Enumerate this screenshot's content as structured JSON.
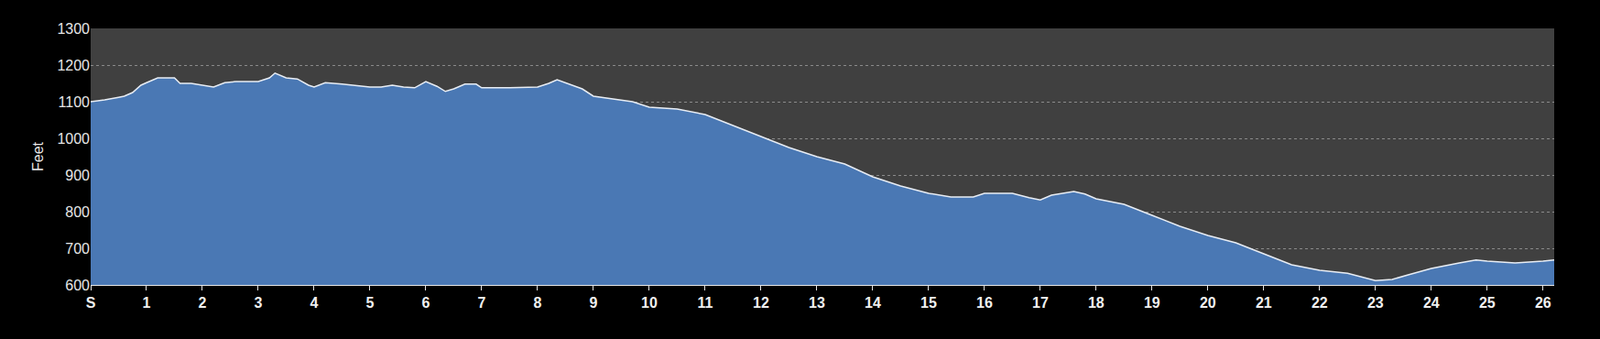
{
  "chart_data": {
    "type": "area",
    "y_label": "Feet",
    "color": "#4a78b4",
    "grid": true,
    "x": [
      0,
      0.25,
      0.5,
      0.6,
      0.75,
      0.9,
      1,
      1.2,
      1.5,
      1.6,
      1.8,
      2,
      2.2,
      2.4,
      2.6,
      3,
      3.2,
      3.3,
      3.5,
      3.7,
      3.9,
      4,
      4.2,
      4.5,
      5,
      5.2,
      5.4,
      5.6,
      5.8,
      6,
      6.2,
      6.35,
      6.5,
      6.7,
      6.9,
      7,
      7.5,
      8,
      8.2,
      8.35,
      8.6,
      8.8,
      9,
      9.3,
      9.7,
      10,
      10.5,
      11,
      11.5,
      12,
      12.5,
      13,
      13.5,
      14,
      14.5,
      15,
      15.4,
      15.8,
      16,
      16.5,
      16.8,
      17,
      17.2,
      17.6,
      17.8,
      18,
      18.5,
      19,
      19.5,
      20,
      20.5,
      21,
      21.5,
      22,
      22.5,
      23,
      23.3,
      23.6,
      24,
      24.5,
      24.8,
      25,
      25.5,
      26,
      26.2
    ],
    "values": [
      1100,
      1105,
      1112,
      1115,
      1125,
      1145,
      1152,
      1165,
      1165,
      1150,
      1150,
      1145,
      1140,
      1152,
      1155,
      1155,
      1165,
      1178,
      1165,
      1162,
      1145,
      1140,
      1152,
      1148,
      1140,
      1140,
      1145,
      1140,
      1138,
      1155,
      1142,
      1128,
      1135,
      1148,
      1148,
      1138,
      1138,
      1140,
      1150,
      1160,
      1145,
      1135,
      1115,
      1108,
      1100,
      1085,
      1080,
      1065,
      1035,
      1005,
      975,
      950,
      930,
      895,
      870,
      850,
      840,
      840,
      850,
      850,
      838,
      832,
      845,
      855,
      848,
      835,
      820,
      790,
      760,
      735,
      715,
      685,
      655,
      640,
      632,
      612,
      615,
      628,
      645,
      660,
      668,
      665,
      660,
      665,
      668
    ],
    "xlim": [
      0,
      26.2
    ],
    "xticks": [
      {
        "value": 0,
        "label": "S"
      },
      1,
      2,
      3,
      4,
      5,
      6,
      7,
      8,
      9,
      10,
      11,
      12,
      13,
      14,
      15,
      16,
      17,
      18,
      19,
      20,
      21,
      22,
      23,
      24,
      25,
      26
    ],
    "ylim": [
      600,
      1300
    ],
    "yticks": [
      600,
      700,
      800,
      900,
      1000,
      1100,
      1200,
      1300
    ]
  }
}
